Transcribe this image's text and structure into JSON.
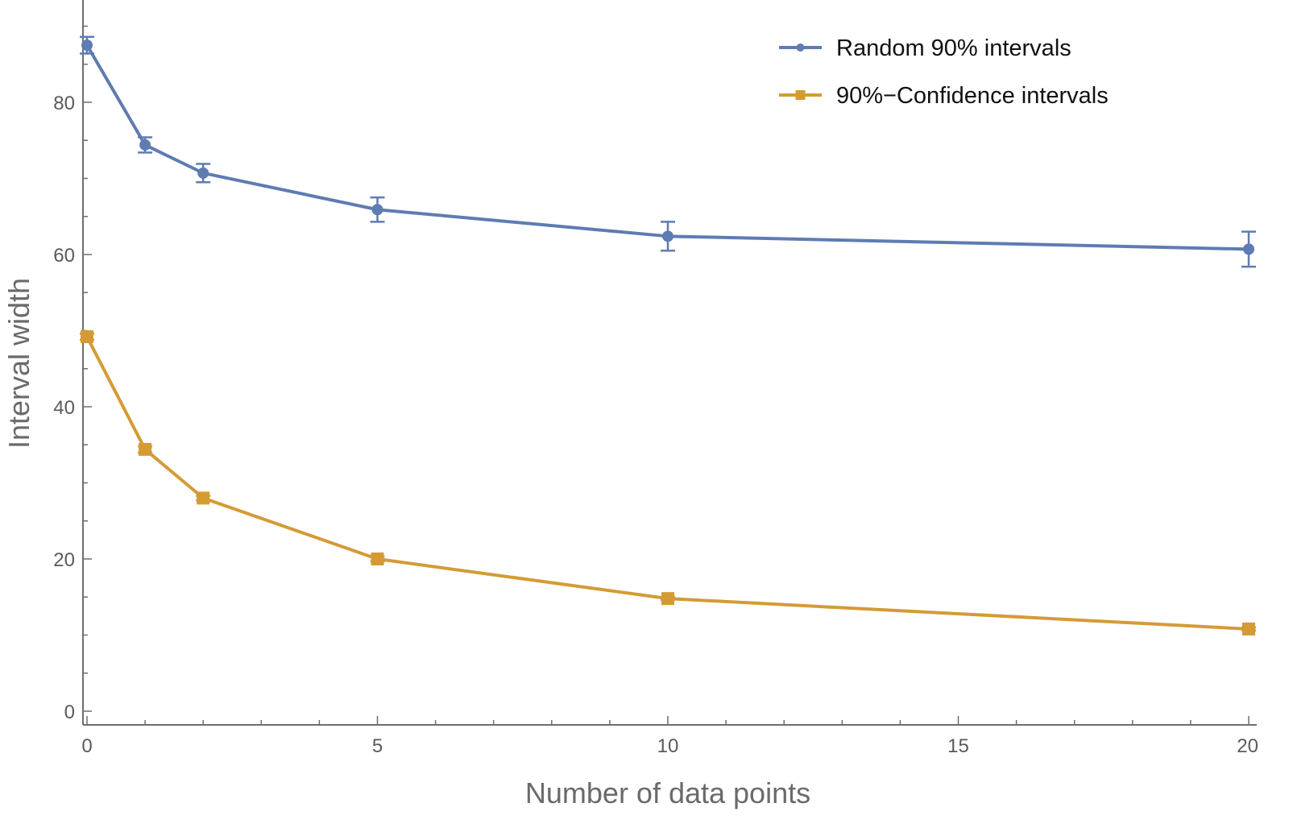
{
  "chart_data": {
    "type": "line",
    "title": "",
    "xlabel": "Number of data points",
    "ylabel": "Interval width",
    "xlim": [
      0,
      20
    ],
    "ylim": [
      -2,
      94
    ],
    "x_ticks": [
      0,
      5,
      10,
      15,
      20
    ],
    "x_tick_labels": [
      "0",
      "5",
      "10",
      "15",
      "20"
    ],
    "x_minor_step": 1,
    "y_ticks": [
      0,
      20,
      40,
      60,
      80
    ],
    "y_tick_labels": [
      "0",
      "20",
      "40",
      "60",
      "80"
    ],
    "y_minor_step": 5,
    "grid": false,
    "legend_position": "top-right",
    "series": [
      {
        "name": "Random 90% intervals",
        "color": "#5f7bb3",
        "marker": "circle",
        "x": [
          0,
          1,
          2,
          5,
          10,
          20
        ],
        "y": [
          87.5,
          74.4,
          70.7,
          65.9,
          62.4,
          60.7
        ],
        "error": [
          1.1,
          1.0,
          1.2,
          1.6,
          1.9,
          2.3
        ]
      },
      {
        "name": "90%-Confidence intervals",
        "color": "#d49b35",
        "marker": "square",
        "x": [
          0,
          1,
          2,
          5,
          10,
          20
        ],
        "y": [
          49.2,
          34.4,
          28.0,
          20.0,
          14.8,
          10.8
        ],
        "error": [
          0.4,
          0.4,
          0.3,
          0.3,
          0.2,
          0.2
        ]
      }
    ],
    "legend": [
      {
        "label": "Random 90% intervals"
      },
      {
        "label": "90%−Confidence intervals"
      }
    ]
  }
}
